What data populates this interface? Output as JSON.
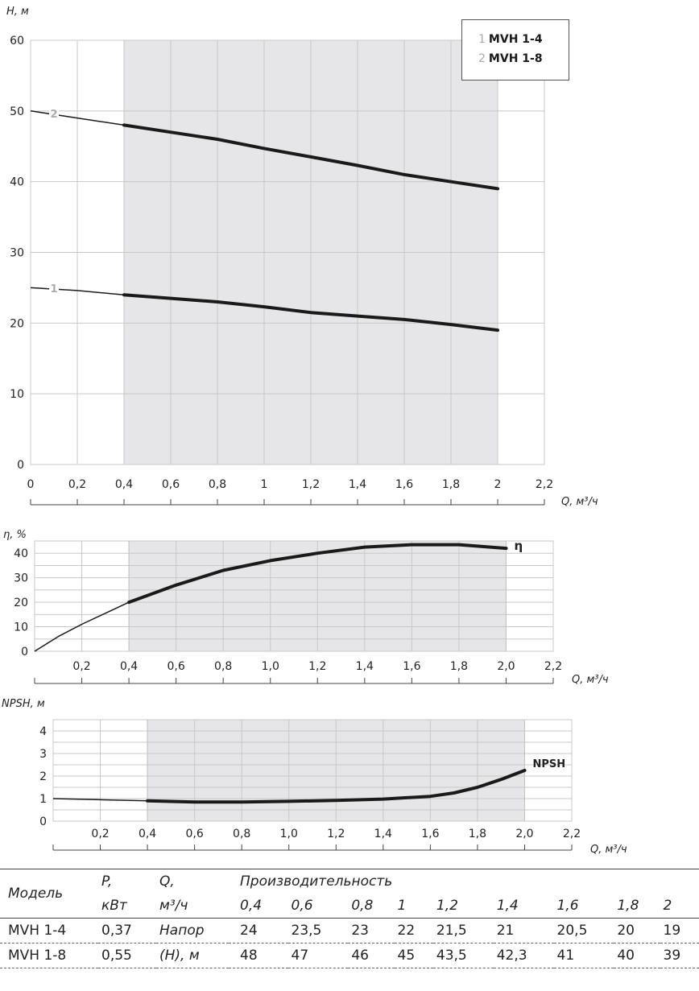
{
  "chart_data": [
    {
      "type": "line",
      "ylabel": "H, м",
      "xlabel": "Q, м³/ч",
      "xlim": [
        0,
        2.2
      ],
      "ylim": [
        0,
        60
      ],
      "x_ticks": [
        "0",
        "0,2",
        "0,4",
        "0,6",
        "0,8",
        "1",
        "1,2",
        "1,4",
        "1,6",
        "1,8",
        "2",
        "2,2"
      ],
      "y_ticks": [
        "0",
        "10",
        "20",
        "30",
        "40",
        "50",
        "60"
      ],
      "shaded_range": [
        0.4,
        2.0
      ],
      "grid": true,
      "legend": [
        {
          "num": "1",
          "name": "MVH 1-4"
        },
        {
          "num": "2",
          "name": "MVH 1-8"
        }
      ],
      "series": [
        {
          "name": "1",
          "x": [
            0,
            0.2,
            0.4,
            0.6,
            0.8,
            1.0,
            1.2,
            1.4,
            1.6,
            1.8,
            2.0
          ],
          "values": [
            25,
            24.6,
            24,
            23.5,
            23,
            22.3,
            21.5,
            21,
            20.5,
            19.8,
            19
          ]
        },
        {
          "name": "2",
          "x": [
            0,
            0.2,
            0.4,
            0.6,
            0.8,
            1.0,
            1.2,
            1.4,
            1.6,
            1.8,
            2.0
          ],
          "values": [
            50,
            49,
            48,
            47,
            46,
            44.7,
            43.5,
            42.3,
            41,
            40,
            39
          ]
        }
      ]
    },
    {
      "type": "line",
      "ylabel": "η, %",
      "xlabel": "Q, м³/ч",
      "xlim": [
        0,
        2.2
      ],
      "ylim": [
        0,
        45
      ],
      "x_ticks": [
        "0,2",
        "0,4",
        "0,6",
        "0,8",
        "1,0",
        "1,2",
        "1,4",
        "1,6",
        "1,8",
        "2,0",
        "2,2"
      ],
      "y_ticks": [
        "0",
        "10",
        "20",
        "30",
        "40"
      ],
      "shaded_range": [
        0.4,
        2.0
      ],
      "grid": true,
      "series": [
        {
          "name": "η",
          "x": [
            0,
            0.1,
            0.2,
            0.3,
            0.4,
            0.6,
            0.8,
            1.0,
            1.2,
            1.4,
            1.6,
            1.8,
            2.0
          ],
          "values": [
            0,
            6,
            11,
            15.5,
            20,
            27,
            33,
            37,
            40,
            42.5,
            43.5,
            43.5,
            42
          ]
        }
      ]
    },
    {
      "type": "line",
      "ylabel": "NPSH, м",
      "xlabel": "Q, м³/ч",
      "xlim": [
        0,
        2.2
      ],
      "ylim": [
        0,
        4.5
      ],
      "x_ticks": [
        "0,2",
        "0,4",
        "0,6",
        "0,8",
        "1,0",
        "1,2",
        "1,4",
        "1,6",
        "1,8",
        "2,0",
        "2,2"
      ],
      "y_ticks": [
        "0",
        "1",
        "2",
        "3",
        "4"
      ],
      "shaded_range": [
        0.4,
        2.0
      ],
      "grid": true,
      "series": [
        {
          "name": "NPSH",
          "x": [
            0,
            0.2,
            0.4,
            0.6,
            0.8,
            1.0,
            1.2,
            1.4,
            1.6,
            1.7,
            1.8,
            1.9,
            2.0
          ],
          "values": [
            1.0,
            0.95,
            0.9,
            0.85,
            0.85,
            0.88,
            0.92,
            0.98,
            1.1,
            1.25,
            1.5,
            1.85,
            2.25
          ]
        }
      ]
    }
  ],
  "table": {
    "h_model": "Модель",
    "h_p": "P,",
    "h_p_unit": "кВт",
    "h_q": "Q,",
    "h_q_unit": "м³/ч",
    "h_perf": "Производительность",
    "h_head": "Напор",
    "h_head_unit": "(H), м",
    "q_values": [
      "0,4",
      "0,6",
      "0,8",
      "1",
      "1,2",
      "1,4",
      "1,6",
      "1,8",
      "2"
    ],
    "rows": [
      {
        "model": "MVH 1-4",
        "p": "0,37",
        "values": [
          "24",
          "23,5",
          "23",
          "22",
          "21,5",
          "21",
          "20,5",
          "20",
          "19"
        ]
      },
      {
        "model": "MVH 1-8",
        "p": "0,55",
        "values": [
          "48",
          "47",
          "46",
          "45",
          "43,5",
          "42,3",
          "41",
          "40",
          "39"
        ]
      }
    ]
  }
}
